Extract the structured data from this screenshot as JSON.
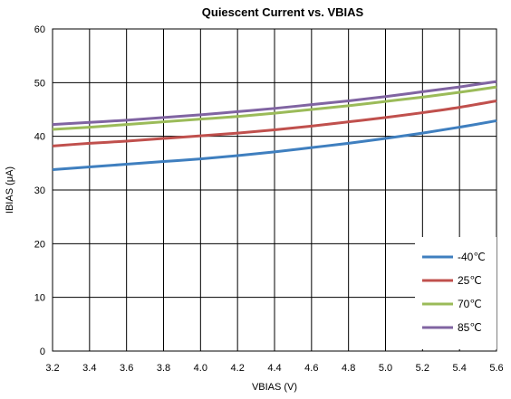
{
  "chart_data": {
    "type": "line",
    "title": "Quiescent Current vs. VBIAS",
    "xlabel": "VBIAS (V)",
    "ylabel": "IBIAS (μA)",
    "xlim": [
      3.2,
      5.6
    ],
    "ylim": [
      0,
      60
    ],
    "x_ticks": [
      "3.2",
      "3.4",
      "3.6",
      "3.8",
      "4.0",
      "4.2",
      "4.4",
      "4.6",
      "4.8",
      "5.0",
      "5.2",
      "5.4",
      "5.6"
    ],
    "y_ticks": [
      "0",
      "10",
      "20",
      "30",
      "40",
      "50",
      "60"
    ],
    "grid": true,
    "legend_position": "bottom-right",
    "x": [
      3.2,
      3.4,
      3.6,
      3.8,
      4.0,
      4.2,
      4.4,
      4.6,
      4.8,
      5.0,
      5.2,
      5.4,
      5.6
    ],
    "series": [
      {
        "name": "-40℃",
        "color": "#3F7FBF",
        "values": [
          33.8,
          34.3,
          34.8,
          35.3,
          35.8,
          36.4,
          37.1,
          37.9,
          38.7,
          39.6,
          40.6,
          41.7,
          42.9
        ]
      },
      {
        "name": "25℃",
        "color": "#C0504D",
        "values": [
          38.2,
          38.7,
          39.1,
          39.6,
          40.1,
          40.6,
          41.2,
          41.9,
          42.7,
          43.5,
          44.4,
          45.4,
          46.6
        ]
      },
      {
        "name": "70℃",
        "color": "#9BBB59",
        "values": [
          41.3,
          41.7,
          42.2,
          42.7,
          43.2,
          43.7,
          44.3,
          45.0,
          45.7,
          46.5,
          47.3,
          48.2,
          49.2
        ]
      },
      {
        "name": "85℃",
        "color": "#8064A2",
        "values": [
          42.2,
          42.6,
          43.0,
          43.5,
          44.0,
          44.6,
          45.2,
          45.9,
          46.6,
          47.4,
          48.3,
          49.2,
          50.2
        ]
      }
    ]
  }
}
